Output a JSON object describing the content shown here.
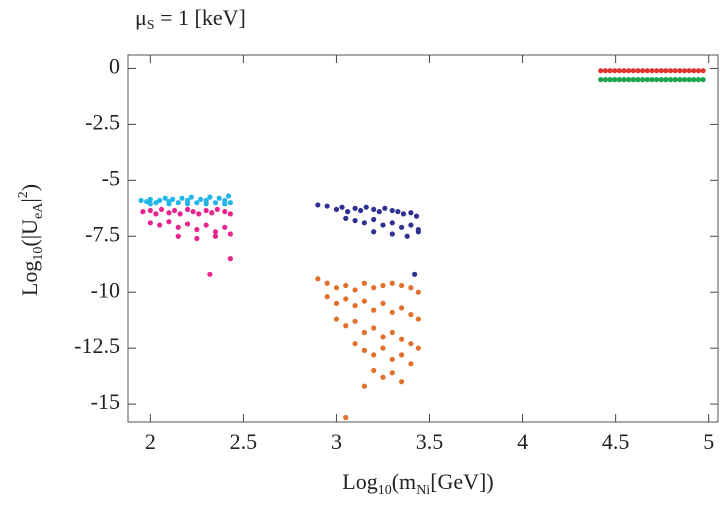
{
  "chart_data": {
    "type": "scatter",
    "title": [
      "μ",
      "S",
      " = 1 [keV]"
    ],
    "x_label": [
      "Log",
      "10",
      "(m",
      "Ni",
      "[GeV])"
    ],
    "y_label": [
      "Log",
      "10",
      "(|U",
      "eA",
      "|",
      "2",
      ")"
    ],
    "xlim": [
      1.88,
      5.05
    ],
    "ylim": [
      -15.8,
      0.6
    ],
    "xticks": [
      2,
      2.5,
      3,
      3.5,
      4,
      4.5,
      5
    ],
    "yticks": [
      0,
      -2.5,
      -5,
      -7.5,
      -10,
      -12.5,
      -15
    ],
    "series": [
      {
        "color": "#22b5e8",
        "x": [
          1.95,
          1.98,
          2.0,
          2.03,
          2.05,
          2.08,
          2.1,
          2.12,
          2.15,
          2.17,
          2.2,
          2.22,
          2.25,
          2.27,
          2.3,
          2.32,
          2.35,
          2.37,
          2.4,
          2.42,
          2.43,
          2.0,
          2.1,
          2.2,
          2.3,
          2.4
        ],
        "y": [
          -5.9,
          -5.95,
          -5.85,
          -6.0,
          -5.9,
          -5.8,
          -5.95,
          -5.85,
          -6.0,
          -5.8,
          -5.9,
          -5.75,
          -6.0,
          -5.85,
          -5.9,
          -5.75,
          -6.0,
          -5.8,
          -5.9,
          -5.7,
          -6.0,
          -6.05,
          -6.05,
          -6.05,
          -6.05,
          -6.05
        ]
      },
      {
        "color": "#e8258f",
        "x": [
          1.96,
          2.0,
          2.03,
          2.06,
          2.1,
          2.13,
          2.16,
          2.2,
          2.23,
          2.26,
          2.3,
          2.33,
          2.36,
          2.4,
          2.43,
          2.0,
          2.05,
          2.1,
          2.15,
          2.2,
          2.25,
          2.3,
          2.35,
          2.4,
          2.43,
          2.15,
          2.25,
          2.35,
          2.43,
          2.32
        ],
        "y": [
          -6.4,
          -6.35,
          -6.5,
          -6.3,
          -6.45,
          -6.35,
          -6.5,
          -6.3,
          -6.4,
          -6.5,
          -6.35,
          -6.45,
          -6.3,
          -6.4,
          -6.5,
          -6.9,
          -7.0,
          -6.85,
          -7.1,
          -6.95,
          -7.2,
          -7.0,
          -7.3,
          -7.1,
          -7.4,
          -7.5,
          -7.6,
          -7.5,
          -8.5,
          -9.2
        ]
      },
      {
        "color": "#2e3192",
        "x": [
          2.9,
          2.95,
          3.0,
          3.03,
          3.06,
          3.1,
          3.13,
          3.16,
          3.2,
          3.23,
          3.26,
          3.3,
          3.33,
          3.36,
          3.4,
          3.43,
          3.05,
          3.1,
          3.15,
          3.2,
          3.25,
          3.3,
          3.35,
          3.4,
          3.44,
          3.2,
          3.3,
          3.38,
          3.44,
          3.42
        ],
        "y": [
          -6.1,
          -6.15,
          -6.3,
          -6.2,
          -6.4,
          -6.25,
          -6.35,
          -6.2,
          -6.3,
          -6.4,
          -6.25,
          -6.35,
          -6.4,
          -6.5,
          -6.45,
          -6.6,
          -6.7,
          -6.8,
          -6.9,
          -6.75,
          -7.0,
          -6.9,
          -7.1,
          -7.0,
          -7.2,
          -7.3,
          -7.4,
          -7.5,
          -7.3,
          -9.2
        ]
      },
      {
        "color": "#e0702a",
        "x": [
          2.9,
          2.95,
          3.0,
          3.05,
          3.1,
          3.15,
          3.2,
          3.25,
          3.3,
          3.35,
          3.4,
          3.44,
          2.95,
          3.0,
          3.05,
          3.1,
          3.15,
          3.2,
          3.25,
          3.3,
          3.35,
          3.4,
          3.44,
          3.0,
          3.05,
          3.1,
          3.15,
          3.2,
          3.25,
          3.3,
          3.35,
          3.4,
          3.44,
          3.1,
          3.15,
          3.2,
          3.25,
          3.3,
          3.35,
          3.4,
          3.2,
          3.25,
          3.3,
          3.35,
          3.15,
          3.05
        ],
        "y": [
          -9.4,
          -9.6,
          -9.8,
          -9.7,
          -9.9,
          -9.6,
          -9.8,
          -9.7,
          -9.6,
          -9.7,
          -9.8,
          -10.0,
          -10.2,
          -10.5,
          -10.3,
          -10.6,
          -10.4,
          -10.8,
          -10.5,
          -10.9,
          -10.7,
          -11.0,
          -11.2,
          -11.2,
          -11.5,
          -11.3,
          -11.8,
          -11.6,
          -12.0,
          -11.8,
          -12.1,
          -12.3,
          -12.5,
          -12.3,
          -12.6,
          -12.8,
          -12.5,
          -13.0,
          -12.8,
          -13.2,
          -13.5,
          -13.8,
          -13.6,
          -14.0,
          -14.2,
          -15.6
        ]
      },
      {
        "color": "#e0342e",
        "x": [
          4.42,
          4.445,
          4.47,
          4.495,
          4.52,
          4.545,
          4.57,
          4.595,
          4.62,
          4.645,
          4.67,
          4.695,
          4.72,
          4.745,
          4.77,
          4.795,
          4.82,
          4.845,
          4.87,
          4.895,
          4.92,
          4.945,
          4.97
        ],
        "y": [
          -0.1,
          -0.1,
          -0.1,
          -0.1,
          -0.1,
          -0.1,
          -0.1,
          -0.1,
          -0.1,
          -0.1,
          -0.1,
          -0.1,
          -0.1,
          -0.1,
          -0.1,
          -0.1,
          -0.1,
          -0.1,
          -0.1,
          -0.1,
          -0.1,
          -0.1,
          -0.1
        ]
      },
      {
        "color": "#1aa64a",
        "x": [
          4.42,
          4.445,
          4.47,
          4.495,
          4.52,
          4.545,
          4.57,
          4.595,
          4.62,
          4.645,
          4.67,
          4.695,
          4.72,
          4.745,
          4.77,
          4.795,
          4.82,
          4.845,
          4.87,
          4.895,
          4.92,
          4.945,
          4.97
        ],
        "y": [
          -0.5,
          -0.5,
          -0.5,
          -0.5,
          -0.5,
          -0.5,
          -0.5,
          -0.5,
          -0.5,
          -0.5,
          -0.5,
          -0.5,
          -0.5,
          -0.5,
          -0.5,
          -0.5,
          -0.5,
          -0.5,
          -0.5,
          -0.5,
          -0.5,
          -0.5,
          -0.5
        ]
      }
    ]
  }
}
